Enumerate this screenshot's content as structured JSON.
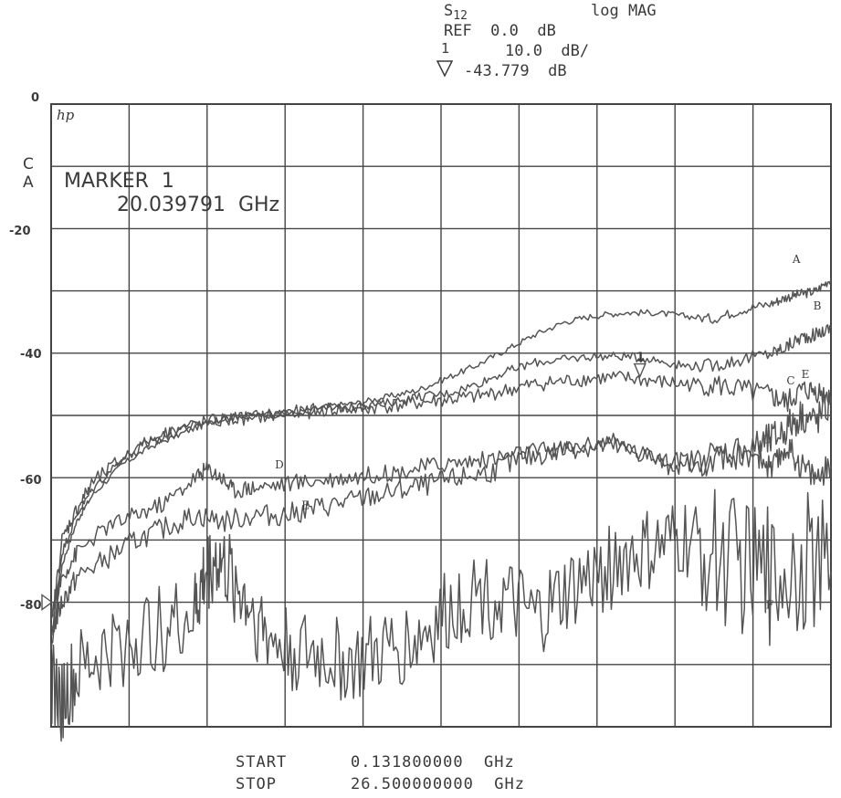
{
  "header": {
    "param": "S",
    "param_sub": "12",
    "format": "log MAG",
    "ref": "REF  0.0  dB",
    "scale": "10.0  dB/",
    "marker_index": "1",
    "marker_value": "-43.779  dB"
  },
  "channel": {
    "line1": "C",
    "line2": "A"
  },
  "brand": "hp",
  "marker": {
    "line1": "MARKER  1",
    "line2": "20.039791  GHz"
  },
  "footer": {
    "start_label": "START",
    "start_value": "0.131800000  GHz",
    "stop_label": "STOP",
    "stop_value": "26.500000000  GHz"
  },
  "colors": {
    "trace": "#555555",
    "grid": "#444444",
    "background": "#ffffff"
  },
  "chart_data": {
    "type": "line",
    "x_unit": "GHz",
    "xlim": [
      0.1318,
      26.5
    ],
    "ylim": [
      -100,
      0
    ],
    "ylabel_ticks": [
      {
        "value": 0,
        "label": "0"
      },
      {
        "value": -20,
        "label": "-20"
      },
      {
        "value": -40,
        "label": "-40"
      },
      {
        "value": -60,
        "label": "-60"
      },
      {
        "value": -80,
        "label": "-80"
      }
    ],
    "grid": true,
    "x_divisions": 10,
    "y_divisions": 10,
    "marker": {
      "label": "1",
      "x": 20.0398,
      "y": -43.779
    },
    "series": [
      {
        "name": "A",
        "x": [
          0.13,
          0.5,
          1,
          1.5,
          2.5,
          3.5,
          4.5,
          5.5,
          6.5,
          7.5,
          8.5,
          9.5,
          10.5,
          11.5,
          12.5,
          13.5,
          14.5,
          15.5,
          16.5,
          17.5,
          18.5,
          19.5,
          20.5,
          21.5,
          22.5,
          23.5,
          24.5,
          25,
          25.5,
          26,
          26.5
        ],
        "y": [
          -88,
          -74,
          -67,
          -63,
          -58,
          -55,
          -53,
          -51,
          -50,
          -50,
          -49.5,
          -48.5,
          -48,
          -47,
          -46,
          -44,
          -42,
          -39.5,
          -37,
          -35,
          -34,
          -33.5,
          -33.5,
          -34,
          -34.5,
          -33,
          -32,
          -31,
          -30.5,
          -30,
          -28
        ]
      },
      {
        "name": "B",
        "x": [
          0.13,
          0.5,
          1,
          1.5,
          2.5,
          3.5,
          4.5,
          5.5,
          6.5,
          7.5,
          8.5,
          9.5,
          10.5,
          11.5,
          12.5,
          13.5,
          14.5,
          15.5,
          16.5,
          17.5,
          18.5,
          19.5,
          20.5,
          21.5,
          22.5,
          23.5,
          24.5,
          25,
          25.5,
          26,
          26.5
        ],
        "y": [
          -86,
          -72,
          -66,
          -62,
          -57,
          -54,
          -52,
          -51,
          -50,
          -50,
          -49.5,
          -49,
          -48.5,
          -48,
          -47,
          -46.5,
          -45,
          -43,
          -41.5,
          -41,
          -40.5,
          -40.5,
          -41,
          -42,
          -42,
          -41,
          -40,
          -39,
          -37.5,
          -37,
          -36
        ]
      },
      {
        "name": "C",
        "x": [
          0.13,
          0.5,
          1,
          1.5,
          2.5,
          3.5,
          4.5,
          5.5,
          6.5,
          7.5,
          8.5,
          9.5,
          10.5,
          11.5,
          12.5,
          13.5,
          14.5,
          15.5,
          16.5,
          17.5,
          18.5,
          19.5,
          20.5,
          21.5,
          22.5,
          23.5,
          24.5,
          25,
          25.5,
          26,
          26.5
        ],
        "y": [
          -84,
          -70,
          -65,
          -61,
          -57,
          -54,
          -52,
          -51,
          -50.5,
          -50,
          -49.5,
          -49,
          -49,
          -48.5,
          -48,
          -47.5,
          -47,
          -46,
          -45,
          -44.5,
          -44,
          -44,
          -44.5,
          -45,
          -45,
          -46,
          -47,
          -48,
          -46,
          -46,
          -47
        ]
      },
      {
        "name": "D",
        "x": [
          0.13,
          0.5,
          1,
          2,
          3,
          4,
          5,
          5.4,
          5.9,
          6.3,
          7,
          8,
          9,
          10,
          11,
          12,
          13,
          14,
          15,
          16,
          17,
          18,
          19,
          20,
          21,
          22,
          23,
          24,
          24.5,
          25,
          25.5,
          26,
          26.5
        ],
        "y": [
          -82,
          -76,
          -72,
          -68,
          -66,
          -64,
          -60,
          -58.5,
          -60,
          -62,
          -61.5,
          -61,
          -60.5,
          -60,
          -59.5,
          -59,
          -58,
          -57.5,
          -57,
          -56,
          -55.5,
          -55,
          -54,
          -56,
          -57,
          -58,
          -57,
          -56,
          -59,
          -55,
          -58,
          -60,
          -58
        ]
      },
      {
        "name": "E",
        "x": [
          0.13,
          0.5,
          1,
          2,
          3,
          4,
          5,
          6,
          7,
          8,
          9,
          10,
          11,
          12,
          13,
          14,
          15,
          16,
          17,
          18,
          19,
          20,
          21,
          22,
          23,
          24,
          24.5,
          25,
          25.5,
          26,
          26.5
        ],
        "y": [
          -85,
          -80,
          -76,
          -73,
          -70,
          -68,
          -66,
          -67,
          -66,
          -66,
          -65,
          -64,
          -63,
          -62,
          -61,
          -60,
          -59,
          -57,
          -56,
          -55,
          -55,
          -56,
          -58,
          -57,
          -56,
          -55,
          -54,
          -52,
          -50,
          -51,
          -48
        ]
      },
      {
        "name": "F",
        "x": [
          0.13,
          0.5,
          1,
          2,
          3,
          4,
          5,
          5.3,
          5.7,
          6.2,
          6.8,
          7.5,
          8.5,
          9.5,
          10.5,
          11.5,
          12.5,
          13.5,
          14.5,
          15.5,
          16.5,
          17.5,
          18.5,
          19.5,
          20.5,
          21.5,
          22.5,
          23.5,
          24.5,
          25.5,
          26.5
        ],
        "y": [
          -93,
          -96,
          -92,
          -88,
          -86,
          -84,
          -82,
          -76,
          -73,
          -76,
          -80,
          -86,
          -88,
          -89,
          -90,
          -88,
          -86,
          -82,
          -78,
          -80,
          -83,
          -79,
          -76,
          -73,
          -72,
          -70,
          -72,
          -74,
          -76,
          -73,
          -75
        ]
      }
    ]
  }
}
